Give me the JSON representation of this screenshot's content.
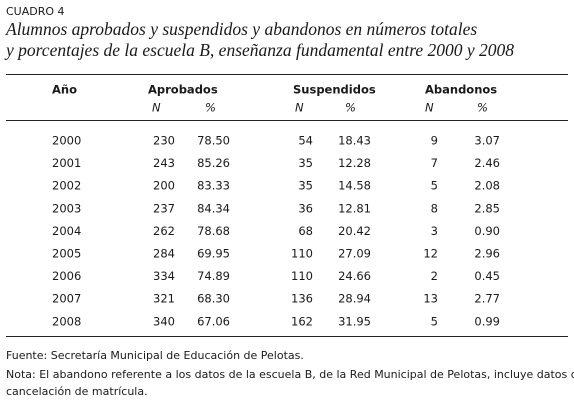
{
  "label": "CUADRO 4",
  "title": [
    "Alumnos aprobados y suspendidos y abandonos en números totales",
    "y porcentajes de la escuela B, enseñanza fundamental entre 2000 y 2008"
  ],
  "table": {
    "year_header": "Año",
    "groups": [
      {
        "name": "Aprobados",
        "sub": [
          "N",
          "%"
        ]
      },
      {
        "name": "Suspendidos",
        "sub": [
          "N",
          "%"
        ]
      },
      {
        "name": "Abandonos",
        "sub": [
          "N",
          "%"
        ]
      }
    ],
    "rows": [
      [
        "2000",
        "230",
        "78.50",
        "54",
        "18.43",
        "9",
        "3.07"
      ],
      [
        "2001",
        "243",
        "85.26",
        "35",
        "12.28",
        "7",
        "2.46"
      ],
      [
        "2002",
        "200",
        "83.33",
        "35",
        "14.58",
        "5",
        "2.08"
      ],
      [
        "2003",
        "237",
        "84.34",
        "36",
        "12.81",
        "8",
        "2.85"
      ],
      [
        "2004",
        "262",
        "78.68",
        "68",
        "20.42",
        "3",
        "0.90"
      ],
      [
        "2005",
        "284",
        "69.95",
        "110",
        "27.09",
        "12",
        "2.96"
      ],
      [
        "2006",
        "334",
        "74.89",
        "110",
        "24.66",
        "2",
        "0.45"
      ],
      [
        "2007",
        "321",
        "68.30",
        "136",
        "28.94",
        "13",
        "2.77"
      ],
      [
        "2008",
        "340",
        "67.06",
        "162",
        "31.95",
        "5",
        "0.99"
      ]
    ]
  },
  "notes": [
    "Fuente: Secretaría Municipal de Educación de Pelotas.",
    "Nota: El abandono referente a los datos de la escuela B, de la Red Municipal de Pelotas, incluye datos de",
    "cancelación de matrícula."
  ]
}
